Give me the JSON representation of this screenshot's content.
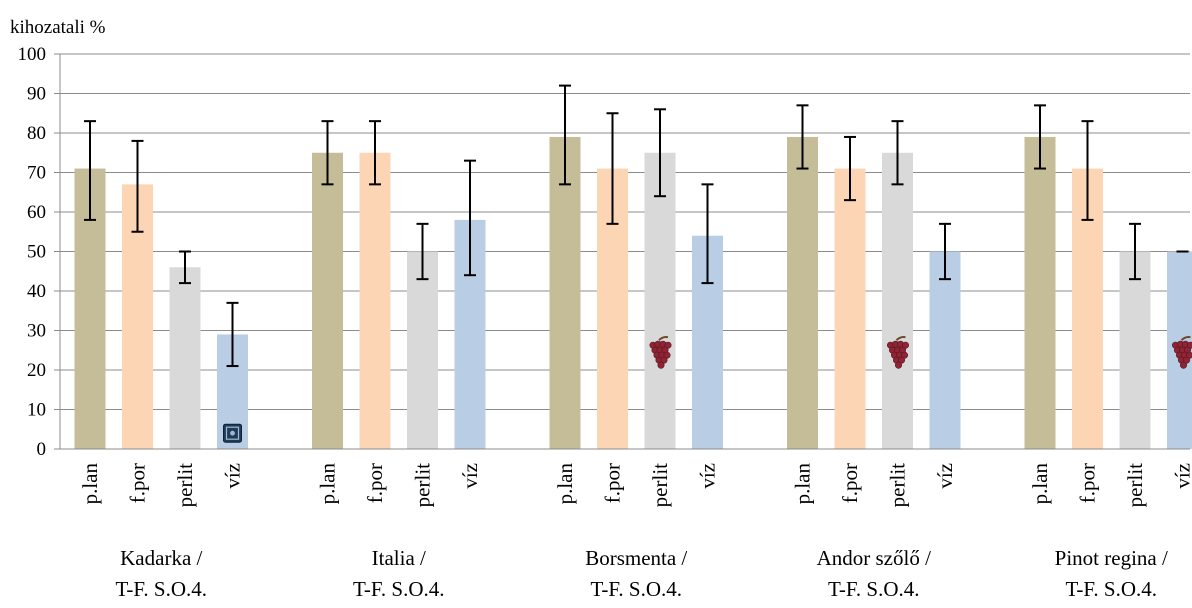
{
  "chart_data": {
    "type": "bar",
    "ylabel": "kihozatali  %",
    "ylim": [
      0,
      100
    ],
    "yticks": [
      0,
      10,
      20,
      30,
      40,
      50,
      60,
      70,
      80,
      90,
      100
    ],
    "grid": true,
    "legend": "none",
    "groups": [
      {
        "line1": "Kadarka /",
        "line2": "T-F. S.O.4.",
        "bars": [
          {
            "label": "p.lan",
            "value": 71,
            "err_low": 58,
            "err_high": 83,
            "color": "#c4bd97"
          },
          {
            "label": "f.por",
            "value": 67,
            "err_low": 55,
            "err_high": 78,
            "color": "#fcd5b5"
          },
          {
            "label": "perlit",
            "value": 46,
            "err_low": 42,
            "err_high": 50,
            "color": "#d9d9d9"
          },
          {
            "label": "víz",
            "value": 29,
            "err_low": 21,
            "err_high": 37,
            "color": "#b9cde5",
            "icon": "safe-icon"
          }
        ]
      },
      {
        "line1": "Italia /",
        "line2": "T-F. S.O.4.",
        "bars": [
          {
            "label": "p.lan",
            "value": 75,
            "err_low": 67,
            "err_high": 83,
            "color": "#c4bd97"
          },
          {
            "label": "f.por",
            "value": 75,
            "err_low": 67,
            "err_high": 83,
            "color": "#fcd5b5"
          },
          {
            "label": "perlit",
            "value": 50,
            "err_low": 43,
            "err_high": 57,
            "color": "#d9d9d9"
          },
          {
            "label": "víz",
            "value": 58,
            "err_low": 44,
            "err_high": 73,
            "color": "#b9cde5"
          }
        ]
      },
      {
        "line1": "Borsmenta /",
        "line2": "T-F. S.O.4.",
        "bars": [
          {
            "label": "p.lan",
            "value": 79,
            "err_low": 67,
            "err_high": 92,
            "color": "#c4bd97"
          },
          {
            "label": "f.por",
            "value": 71,
            "err_low": 57,
            "err_high": 85,
            "color": "#fcd5b5"
          },
          {
            "label": "perlit",
            "value": 75,
            "err_low": 64,
            "err_high": 86,
            "color": "#d9d9d9",
            "icon": "grapes-icon"
          },
          {
            "label": "víz",
            "value": 54,
            "err_low": 42,
            "err_high": 67,
            "color": "#b9cde5"
          }
        ]
      },
      {
        "line1": "Andor szőlő /",
        "line2": "T-F. S.O.4.",
        "bars": [
          {
            "label": "p.lan",
            "value": 79,
            "err_low": 71,
            "err_high": 87,
            "color": "#c4bd97"
          },
          {
            "label": "f.por",
            "value": 71,
            "err_low": 63,
            "err_high": 79,
            "color": "#fcd5b5"
          },
          {
            "label": "perlit",
            "value": 75,
            "err_low": 67,
            "err_high": 83,
            "color": "#d9d9d9",
            "icon": "grapes-icon"
          },
          {
            "label": "víz",
            "value": 50,
            "err_low": 43,
            "err_high": 57,
            "color": "#b9cde5"
          }
        ]
      },
      {
        "line1": "Pinot regina /",
        "line2": "T-F. S.O.4.",
        "bars": [
          {
            "label": "p.lan",
            "value": 79,
            "err_low": 71,
            "err_high": 87,
            "color": "#c4bd97"
          },
          {
            "label": "f.por",
            "value": 71,
            "err_low": 58,
            "err_high": 83,
            "color": "#fcd5b5"
          },
          {
            "label": "perlit",
            "value": 50,
            "err_low": 43,
            "err_high": 57,
            "color": "#d9d9d9"
          },
          {
            "label": "víz",
            "value": 50,
            "err_low": 50,
            "err_high": 50,
            "color": "#b9cde5",
            "icon": "grapes-icon"
          }
        ]
      }
    ]
  }
}
